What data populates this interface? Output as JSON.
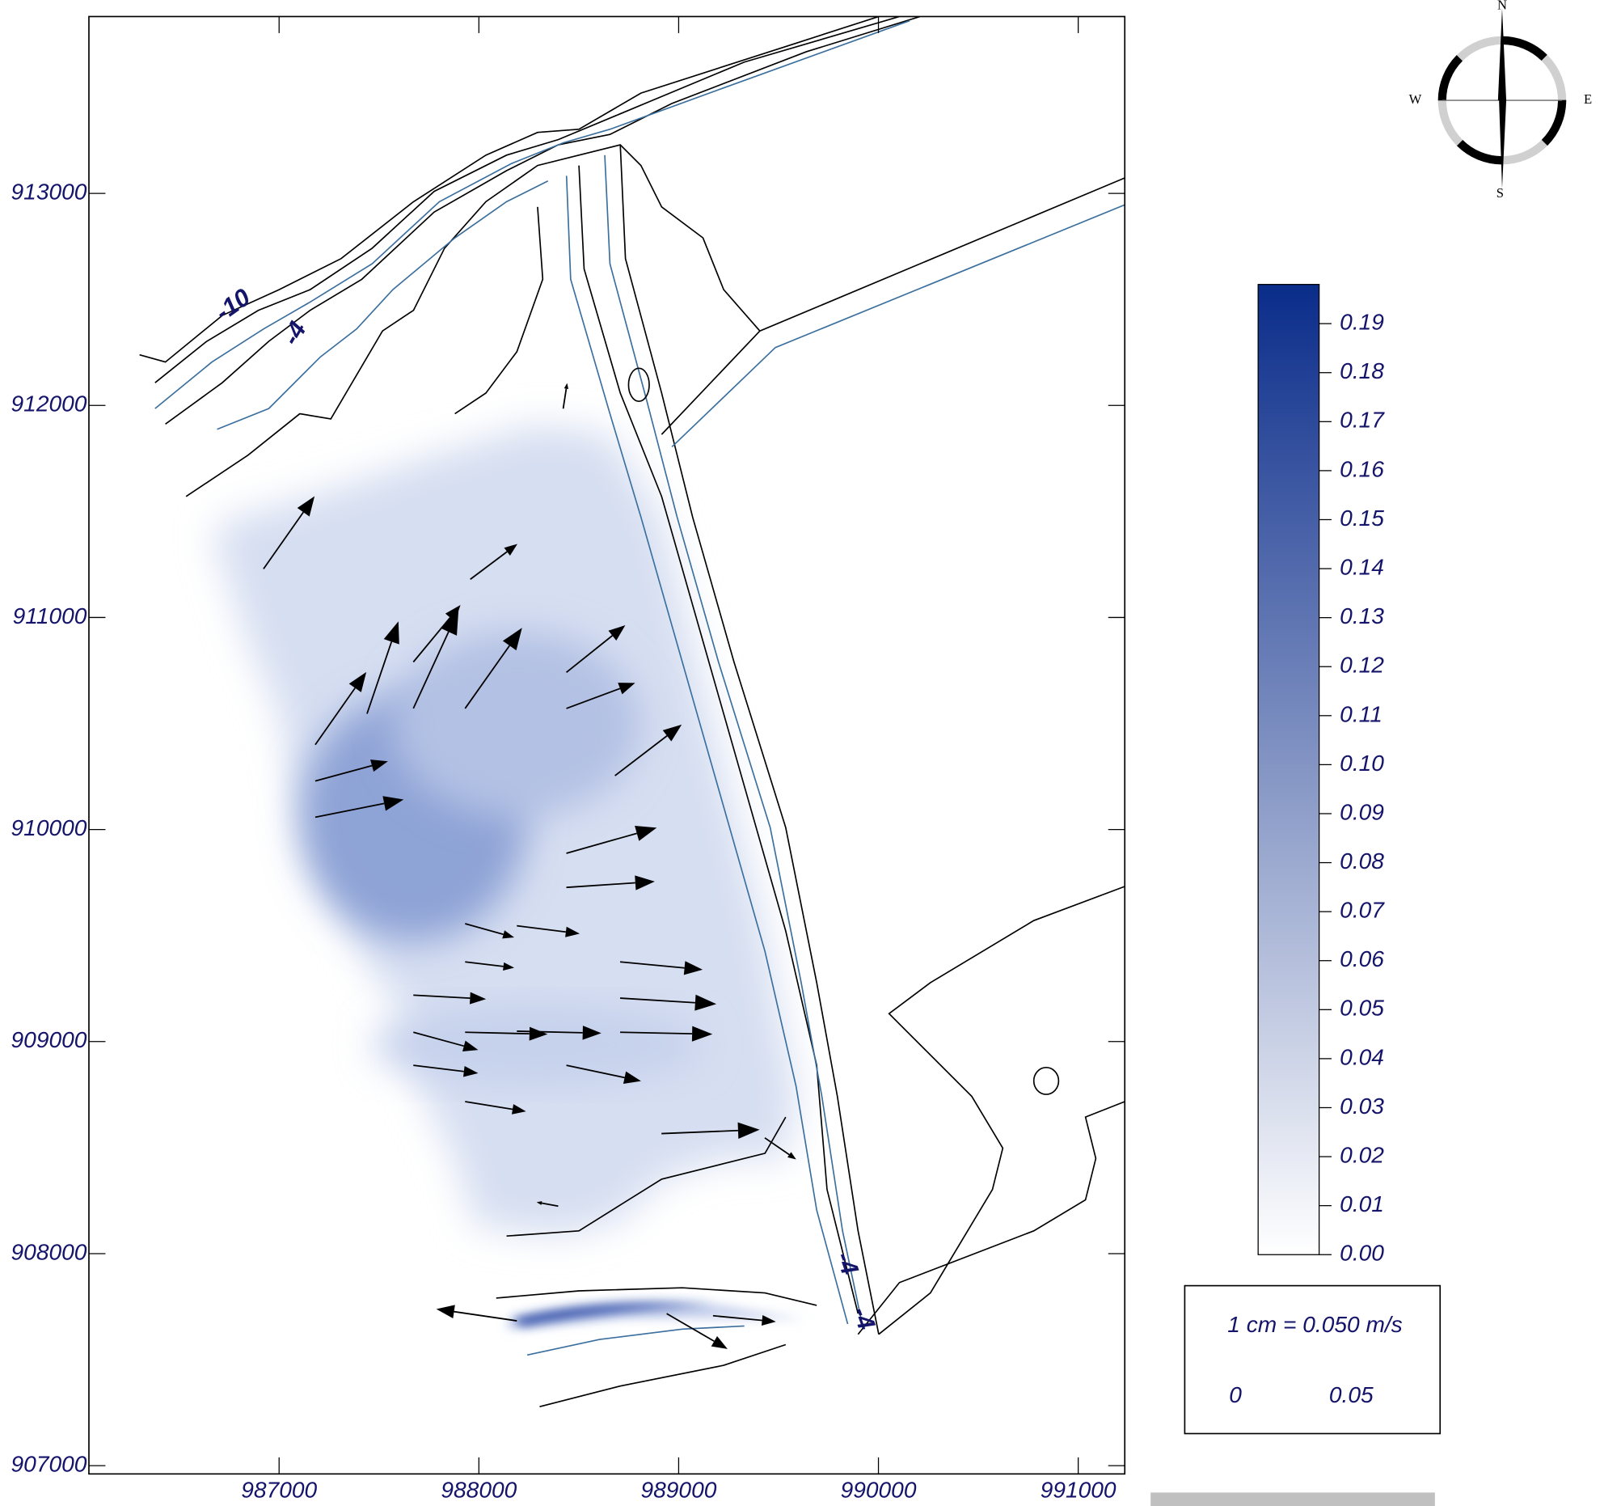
{
  "chart_data": {
    "type": "vector",
    "xlim": [
      986048,
      991233
    ],
    "ylim": [
      906961,
      913834
    ],
    "xticks": [
      987000,
      988000,
      989000,
      990000,
      991000
    ],
    "yticks": [
      907000,
      908000,
      909000,
      910000,
      911000,
      912000,
      913000
    ],
    "vectors": {
      "x": [
        987181,
        987181,
        987181,
        987440,
        987672,
        987931,
        988438,
        988681,
        988438,
        988438,
        987672,
        987931,
        988190,
        988707,
        987672,
        987672,
        987931,
        988438,
        988707,
        987931,
        988190,
        988707,
        987931,
        988190,
        988940,
        989172,
        986922,
        987957,
        987672,
        988438,
        988422,
        988914,
        989431,
        988397
      ],
      "y": [
        910058,
        910229,
        910400,
        910546,
        910571,
        910571,
        910571,
        910254,
        909888,
        909727,
        909219,
        909044,
        909049,
        909044,
        909044,
        908888,
        908717,
        908888,
        909205,
        909556,
        909546,
        909376,
        909376,
        907683,
        907717,
        907707,
        911229,
        911180,
        910790,
        910741,
        911985,
        908566,
        908546,
        908224
      ],
      "u": [
        0.045,
        0.037,
        0.026,
        0.016,
        0.023,
        0.029,
        0.035,
        0.034,
        0.046,
        0.045,
        0.037,
        0.042,
        0.043,
        0.047,
        0.033,
        0.033,
        0.031,
        0.038,
        0.049,
        0.025,
        0.032,
        0.042,
        0.025,
        -0.041,
        0.031,
        0.032,
        0.026,
        0.024,
        0.024,
        0.03,
        0.002,
        0.05,
        0.016,
        -0.011
      ],
      "v": [
        0.009,
        0.01,
        0.037,
        0.047,
        0.05,
        0.041,
        0.013,
        0.026,
        0.013,
        0.003,
        -0.002,
        -0.001,
        -0.001,
        -0.001,
        -0.009,
        -0.004,
        -0.005,
        -0.008,
        -0.003,
        -0.007,
        -0.004,
        -0.004,
        -0.003,
        0.006,
        -0.018,
        -0.003,
        0.037,
        0.018,
        0.029,
        0.024,
        0.013,
        0.002,
        -0.011,
        0.002
      ]
    },
    "colorbar": {
      "lim": [
        0,
        0.198
      ],
      "colors": [
        "#ffffff",
        "#0a2c8a"
      ],
      "ticks": [
        {
          "value": 0,
          "label": "0.00"
        },
        0.01,
        0.02,
        0.03,
        0.04,
        0.05,
        0.06,
        0.07,
        0.08,
        0.09,
        {
          "value": 0.1,
          "label": "0.10"
        },
        0.11,
        0.12,
        0.13,
        0.14,
        0.15,
        0.16,
        0.17,
        0.18,
        0.19
      ]
    },
    "reference": {
      "label": "1 cm = 0.050 m/s",
      "values": [
        0,
        0.05
      ]
    },
    "contour_labels": [
      "-10",
      "-4",
      "-4",
      "-4"
    ],
    "compass": [
      "N",
      "E",
      "S",
      "W"
    ],
    "arrow_color": "#000000"
  }
}
